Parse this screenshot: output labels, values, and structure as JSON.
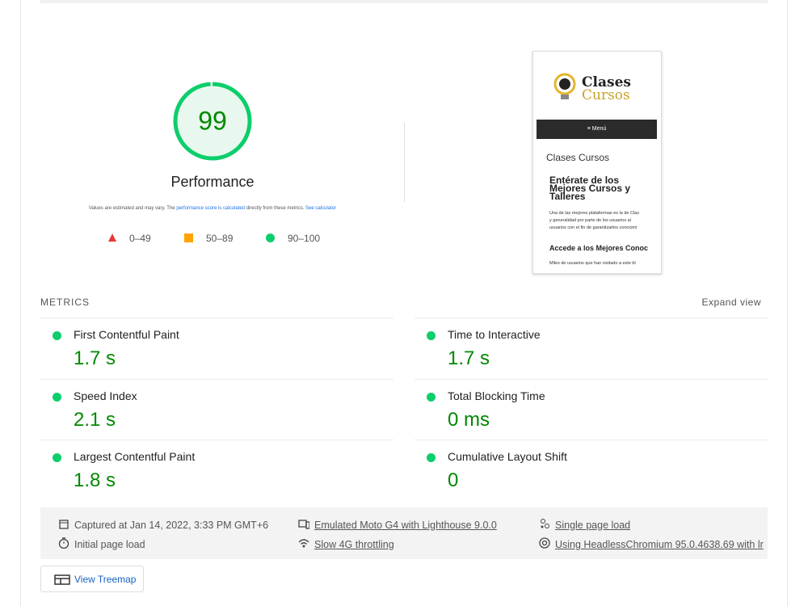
{
  "gauge": {
    "score": 99,
    "label": "Performance"
  },
  "note": {
    "prefix": "Values are estimated and may vary. The",
    "link1": "performance score is calculated",
    "middle": "directly from these metrics.",
    "link2": "See calculator"
  },
  "legend": [
    "0–49",
    "50–89",
    "90–100"
  ],
  "thumbnail": {
    "logo_top": "Clases",
    "logo_bottom": "Cursos",
    "menu": "Menú",
    "site_title": "Clases Cursos",
    "heading": "Entérate de los Mejores Cursos y Talleres",
    "paragraph": [
      "Una de las mejores plataformas es la de Clas",
      "y generalidad por parte de los usuarios al",
      "usuarios con el fin de garantizarles conocimi"
    ],
    "subheading": "Accede a los Mejores Conoc",
    "footer_text": "Miles de usuarios que han visitado a este bl"
  },
  "metrics": {
    "title": "METRICS",
    "expand": "Expand view",
    "items": [
      {
        "name": "First Contentful Paint",
        "value": "1.7 s"
      },
      {
        "name": "Time to Interactive",
        "value": "1.7 s"
      },
      {
        "name": "Speed Index",
        "value": "2.1 s"
      },
      {
        "name": "Total Blocking Time",
        "value": "0 ms"
      },
      {
        "name": "Largest Contentful Paint",
        "value": "1.8 s"
      },
      {
        "name": "Cumulative Layout Shift",
        "value": "0"
      }
    ]
  },
  "runtime": [
    "Captured at Jan 14, 2022, 3:33 PM GMT+6",
    "Emulated Moto G4 with Lighthouse 9.0.0",
    "Single page load",
    "Initial page load",
    "Slow 4G throttling",
    "Using HeadlessChromium 95.0.4638.69 with lr"
  ],
  "treemap": "View Treemap"
}
